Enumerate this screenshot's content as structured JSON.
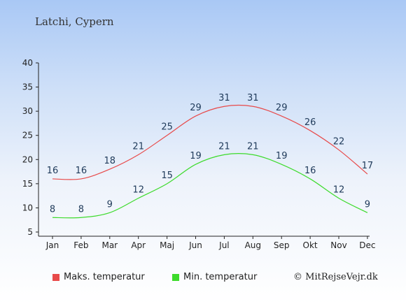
{
  "colors": {
    "max": "#e84a4a",
    "min": "#3ddb2c"
  },
  "chart_data": {
    "type": "line",
    "title": "Latchi, Cypern",
    "categories": [
      "Jan",
      "Feb",
      "Mar",
      "Apr",
      "Maj",
      "Jun",
      "Jul",
      "Aug",
      "Sep",
      "Okt",
      "Nov",
      "Dec"
    ],
    "series": [
      {
        "name": "Maks. temperatur",
        "values": [
          16,
          16,
          18,
          21,
          25,
          29,
          31,
          31,
          29,
          26,
          22,
          17
        ]
      },
      {
        "name": "Min. temperatur",
        "values": [
          8,
          8,
          9,
          12,
          15,
          19,
          21,
          21,
          19,
          16,
          12,
          9
        ]
      }
    ],
    "ylim": [
      5,
      40
    ],
    "yticks": [
      5,
      10,
      15,
      20,
      25,
      30,
      35,
      40
    ],
    "xlabel": "",
    "ylabel": "",
    "grid": false,
    "legend": "bottom"
  },
  "credit": "© MitRejseVejr.dk"
}
